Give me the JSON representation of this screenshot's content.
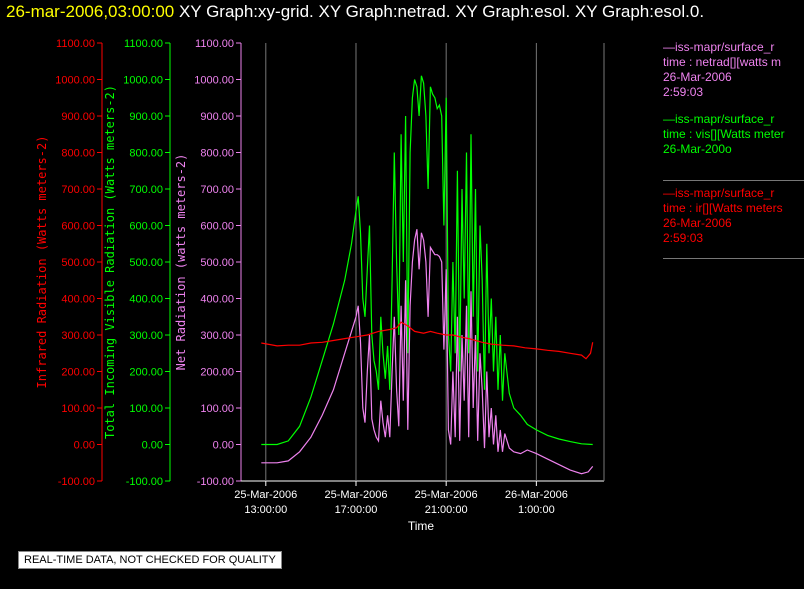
{
  "header": {
    "timestamp": "26-mar-2006,03:00:00",
    "graphs": "XY Graph:xy-grid.  XY Graph:netrad.  XY Graph:esol.  XY Graph:esol.0."
  },
  "legend": [
    {
      "name": "—iss-mapr/surface_r",
      "desc": "time : netrad[][watts m",
      "date": "26-Mar-2006",
      "time": "2:59:03",
      "color": "#ee82ee"
    },
    {
      "name": "—iss-mapr/surface_r",
      "desc": "time : vis[][Watts meter",
      "date": "26-Mar-200o",
      "time": "",
      "color": "#00ff00"
    },
    {
      "name": "—iss-mapr/surface_r",
      "desc": "time : ir[][Watts meters",
      "date": "26-Mar-2006",
      "time": "2:59:03",
      "color": "#ff0000"
    }
  ],
  "quality_note": "REAL-TIME DATA, NOT CHECKED FOR QUALITY",
  "chart_data": {
    "type": "line",
    "xlabel": "Time",
    "x_ticks": [
      {
        "hours": 0,
        "line1": "25-Mar-2006",
        "line2": "13:00:00"
      },
      {
        "hours": 4,
        "line1": "25-Mar-2006",
        "line2": "17:00:00"
      },
      {
        "hours": 8,
        "line1": "25-Mar-2006",
        "line2": "21:00:00"
      },
      {
        "hours": 12,
        "line1": "26-Mar-2006",
        "line2": "1:00:00"
      }
    ],
    "xlim_hours": [
      -1.1,
      15.0
    ],
    "axes": [
      {
        "label": "Infrared Radiation (Watts meters-2)",
        "color": "#ff0000",
        "ylim": [
          -100,
          1100
        ]
      },
      {
        "label": "Total Incoming Visible Radiation (Watts meters-2)",
        "color": "#00ff00",
        "ylim": [
          -100,
          1100
        ]
      },
      {
        "label": "Net Radiation (watts meters-2)",
        "color": "#ee82ee",
        "ylim": [
          -100,
          1100
        ]
      }
    ],
    "y_ticks": [
      "-100.00",
      "0.00",
      "100.00",
      "200.00",
      "300.00",
      "400.00",
      "500.00",
      "600.00",
      "700.00",
      "800.00",
      "900.00",
      "1000.00",
      "1100.00"
    ],
    "y_tick_values": [
      -100,
      0,
      100,
      200,
      300,
      400,
      500,
      600,
      700,
      800,
      900,
      1000,
      1100
    ],
    "series": [
      {
        "name": "vis",
        "color": "#00ff00",
        "points": [
          [
            -0.2,
            0
          ],
          [
            0.5,
            0
          ],
          [
            1.0,
            10
          ],
          [
            1.5,
            50
          ],
          [
            2.0,
            130
          ],
          [
            2.5,
            230
          ],
          [
            3.0,
            330
          ],
          [
            3.5,
            450
          ],
          [
            3.8,
            550
          ],
          [
            4.0,
            640
          ],
          [
            4.1,
            680
          ],
          [
            4.2,
            580
          ],
          [
            4.3,
            400
          ],
          [
            4.4,
            350
          ],
          [
            4.5,
            480
          ],
          [
            4.6,
            600
          ],
          [
            4.7,
            300
          ],
          [
            4.8,
            230
          ],
          [
            4.9,
            200
          ],
          [
            5.0,
            150
          ],
          [
            5.1,
            350
          ],
          [
            5.2,
            250
          ],
          [
            5.3,
            180
          ],
          [
            5.4,
            270
          ],
          [
            5.5,
            150
          ],
          [
            5.6,
            450
          ],
          [
            5.7,
            800
          ],
          [
            5.8,
            500
          ],
          [
            5.9,
            300
          ],
          [
            6.0,
            850
          ],
          [
            6.1,
            500
          ],
          [
            6.2,
            900
          ],
          [
            6.3,
            250
          ],
          [
            6.4,
            800
          ],
          [
            6.5,
            950
          ],
          [
            6.6,
            1000
          ],
          [
            6.7,
            980
          ],
          [
            6.8,
            900
          ],
          [
            6.9,
            1010
          ],
          [
            7.0,
            990
          ],
          [
            7.1,
            900
          ],
          [
            7.2,
            700
          ],
          [
            7.3,
            980
          ],
          [
            7.4,
            960
          ],
          [
            7.5,
            950
          ],
          [
            7.6,
            920
          ],
          [
            7.7,
            930
          ],
          [
            7.8,
            900
          ],
          [
            7.9,
            600
          ],
          [
            8.0,
            950
          ],
          [
            8.1,
            300
          ],
          [
            8.2,
            200
          ],
          [
            8.3,
            500
          ],
          [
            8.4,
            250
          ],
          [
            8.5,
            750
          ],
          [
            8.6,
            200
          ],
          [
            8.7,
            700
          ],
          [
            8.8,
            400
          ],
          [
            8.9,
            800
          ],
          [
            9.0,
            250
          ],
          [
            9.1,
            850
          ],
          [
            9.2,
            350
          ],
          [
            9.3,
            700
          ],
          [
            9.4,
            200
          ],
          [
            9.5,
            600
          ],
          [
            9.6,
            450
          ],
          [
            9.7,
            150
          ],
          [
            9.8,
            550
          ],
          [
            9.9,
            250
          ],
          [
            10.0,
            400
          ],
          [
            10.1,
            200
          ],
          [
            10.2,
            350
          ],
          [
            10.3,
            150
          ],
          [
            10.4,
            300
          ],
          [
            10.5,
            120
          ],
          [
            10.6,
            250
          ],
          [
            10.8,
            140
          ],
          [
            11.0,
            100
          ],
          [
            11.3,
            80
          ],
          [
            11.6,
            55
          ],
          [
            12.0,
            40
          ],
          [
            12.5,
            25
          ],
          [
            13.0,
            15
          ],
          [
            13.5,
            8
          ],
          [
            14.0,
            2
          ],
          [
            14.5,
            0
          ]
        ]
      },
      {
        "name": "netrad",
        "color": "#ee82ee",
        "points": [
          [
            -0.2,
            -50
          ],
          [
            0.5,
            -50
          ],
          [
            1.0,
            -45
          ],
          [
            1.5,
            -20
          ],
          [
            2.0,
            20
          ],
          [
            2.5,
            80
          ],
          [
            3.0,
            150
          ],
          [
            3.5,
            250
          ],
          [
            3.8,
            310
          ],
          [
            4.0,
            350
          ],
          [
            4.1,
            380
          ],
          [
            4.2,
            280
          ],
          [
            4.3,
            100
          ],
          [
            4.4,
            60
          ],
          [
            4.5,
            200
          ],
          [
            4.6,
            300
          ],
          [
            4.7,
            70
          ],
          [
            4.8,
            40
          ],
          [
            4.9,
            20
          ],
          [
            5.0,
            10
          ],
          [
            5.1,
            120
          ],
          [
            5.2,
            60
          ],
          [
            5.3,
            20
          ],
          [
            5.4,
            80
          ],
          [
            5.5,
            20
          ],
          [
            5.6,
            200
          ],
          [
            5.7,
            350
          ],
          [
            5.8,
            150
          ],
          [
            5.9,
            50
          ],
          [
            6.0,
            380
          ],
          [
            6.1,
            120
          ],
          [
            6.2,
            450
          ],
          [
            6.3,
            40
          ],
          [
            6.4,
            380
          ],
          [
            6.5,
            500
          ],
          [
            6.6,
            560
          ],
          [
            6.7,
            590
          ],
          [
            6.8,
            480
          ],
          [
            6.9,
            580
          ],
          [
            7.0,
            560
          ],
          [
            7.1,
            500
          ],
          [
            7.2,
            350
          ],
          [
            7.3,
            540
          ],
          [
            7.4,
            530
          ],
          [
            7.5,
            520
          ],
          [
            7.6,
            520
          ],
          [
            7.7,
            515
          ],
          [
            7.8,
            500
          ],
          [
            7.9,
            260
          ],
          [
            8.0,
            480
          ],
          [
            8.1,
            40
          ],
          [
            8.2,
            0
          ],
          [
            8.3,
            200
          ],
          [
            8.4,
            20
          ],
          [
            8.5,
            350
          ],
          [
            8.6,
            10
          ],
          [
            8.7,
            300
          ],
          [
            8.8,
            120
          ],
          [
            8.9,
            380
          ],
          [
            9.0,
            20
          ],
          [
            9.1,
            420
          ],
          [
            9.2,
            100
          ],
          [
            9.3,
            300
          ],
          [
            9.4,
            10
          ],
          [
            9.5,
            250
          ],
          [
            9.6,
            150
          ],
          [
            9.7,
            -10
          ],
          [
            9.8,
            200
          ],
          [
            9.9,
            20
          ],
          [
            10.0,
            100
          ],
          [
            10.1,
            0
          ],
          [
            10.2,
            80
          ],
          [
            10.3,
            -20
          ],
          [
            10.4,
            40
          ],
          [
            10.5,
            -20
          ],
          [
            10.6,
            30
          ],
          [
            10.8,
            -10
          ],
          [
            11.0,
            -20
          ],
          [
            11.3,
            -25
          ],
          [
            11.6,
            -15
          ],
          [
            12.0,
            -25
          ],
          [
            12.5,
            -40
          ],
          [
            13.0,
            -55
          ],
          [
            13.5,
            -70
          ],
          [
            14.0,
            -80
          ],
          [
            14.3,
            -75
          ],
          [
            14.5,
            -60
          ]
        ]
      },
      {
        "name": "ir",
        "color": "#ff0000",
        "points": [
          [
            -0.2,
            278
          ],
          [
            0.5,
            270
          ],
          [
            1.0,
            272
          ],
          [
            1.5,
            272
          ],
          [
            2.0,
            278
          ],
          [
            2.5,
            280
          ],
          [
            3.0,
            285
          ],
          [
            3.5,
            290
          ],
          [
            4.0,
            295
          ],
          [
            4.5,
            300
          ],
          [
            5.0,
            310
          ],
          [
            5.5,
            315
          ],
          [
            5.8,
            320
          ],
          [
            6.0,
            335
          ],
          [
            6.3,
            325
          ],
          [
            6.6,
            310
          ],
          [
            7.0,
            305
          ],
          [
            7.3,
            310
          ],
          [
            7.6,
            305
          ],
          [
            8.0,
            300
          ],
          [
            8.3,
            300
          ],
          [
            8.6,
            295
          ],
          [
            9.0,
            290
          ],
          [
            9.3,
            285
          ],
          [
            9.6,
            280
          ],
          [
            10.0,
            275
          ],
          [
            10.5,
            272
          ],
          [
            11.0,
            270
          ],
          [
            11.5,
            265
          ],
          [
            12.0,
            262
          ],
          [
            12.5,
            258
          ],
          [
            13.0,
            255
          ],
          [
            13.5,
            250
          ],
          [
            14.0,
            245
          ],
          [
            14.2,
            235
          ],
          [
            14.4,
            250
          ],
          [
            14.5,
            280
          ]
        ]
      }
    ]
  }
}
